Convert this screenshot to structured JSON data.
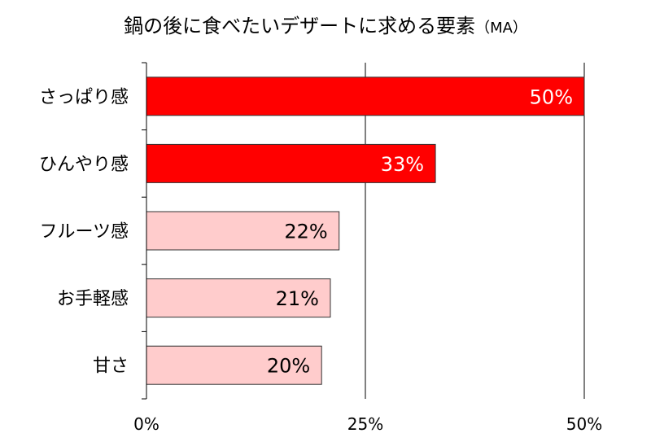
{
  "title": "鍋の後に食べたいデザートに求める要素",
  "title_suffix": "（MA）",
  "colors": {
    "highlight_fill": "#ff0000",
    "highlight_label": "#ffffff",
    "normal_fill": "#ffcccc",
    "normal_label": "#000000",
    "bar_stroke": "#333333",
    "axis": "#000000"
  },
  "chart_data": {
    "type": "bar",
    "orientation": "horizontal",
    "title": "鍋の後に食べたいデザートに求める要素（MA）",
    "categories": [
      "さっぱり感",
      "ひんやり感",
      "フルーツ感",
      "お手軽感",
      "甘さ"
    ],
    "values": [
      50,
      33,
      22,
      21,
      20
    ],
    "value_labels": [
      "50%",
      "33%",
      "22%",
      "21%",
      "20%"
    ],
    "highlighted": [
      true,
      true,
      false,
      false,
      false
    ],
    "xlim": [
      0,
      50
    ],
    "xticks": [
      0,
      25,
      50
    ],
    "xtick_labels": [
      "0%",
      "25%",
      "50%"
    ],
    "gridlines": "vertical at each tick",
    "legend": "none"
  }
}
